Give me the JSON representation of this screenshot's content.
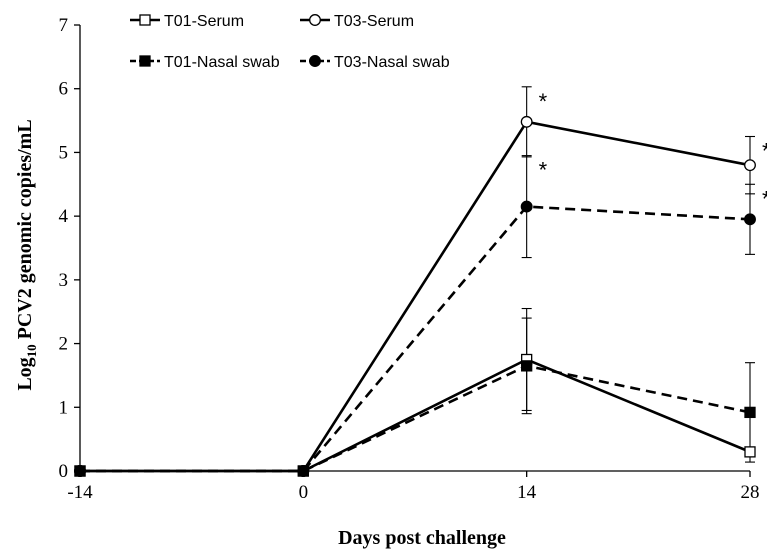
{
  "chart_data": {
    "type": "line",
    "xlabel": "Days post challenge",
    "ylabel_main": "Log",
    "ylabel_sub": "10",
    "ylabel_rest": " PCV2 genomic copies/mL",
    "x": [
      -14,
      0,
      14,
      28
    ],
    "x_ticks": [
      "-14",
      "0",
      "14",
      "28"
    ],
    "y_ticks": [
      "0",
      "1",
      "2",
      "3",
      "4",
      "5",
      "6",
      "7"
    ],
    "ylim": [
      0,
      7
    ],
    "legend_placement": "top-left",
    "series": [
      {
        "name": "T01-Serum",
        "values": [
          0,
          0,
          1.75,
          0.3
        ],
        "error": [
          0,
          0,
          0.8,
          0
        ],
        "line": "solid",
        "marker": "square-open",
        "significant": [
          false,
          false,
          false,
          false
        ]
      },
      {
        "name": "T03-Serum",
        "values": [
          0,
          0,
          5.48,
          4.8
        ],
        "error": [
          0,
          0,
          0.55,
          0.45
        ],
        "line": "solid",
        "marker": "circle-open",
        "significant": [
          false,
          false,
          true,
          true
        ]
      },
      {
        "name": "T01-Nasal swab",
        "values": [
          0,
          0,
          1.65,
          0.92
        ],
        "error": [
          0,
          0,
          0.75,
          0.78
        ],
        "line": "dashed",
        "marker": "square-filled",
        "significant": [
          false,
          false,
          false,
          false
        ]
      },
      {
        "name": "T03-Nasal swab",
        "values": [
          0,
          0,
          4.15,
          3.95
        ],
        "error": [
          0,
          0,
          0.8,
          0.55
        ],
        "line": "dashed",
        "marker": "circle-filled",
        "significant": [
          false,
          false,
          true,
          true
        ]
      }
    ],
    "significance_symbol": "*",
    "colors": {
      "line": "#000000",
      "axis": "#000000",
      "background": "#ffffff"
    }
  }
}
